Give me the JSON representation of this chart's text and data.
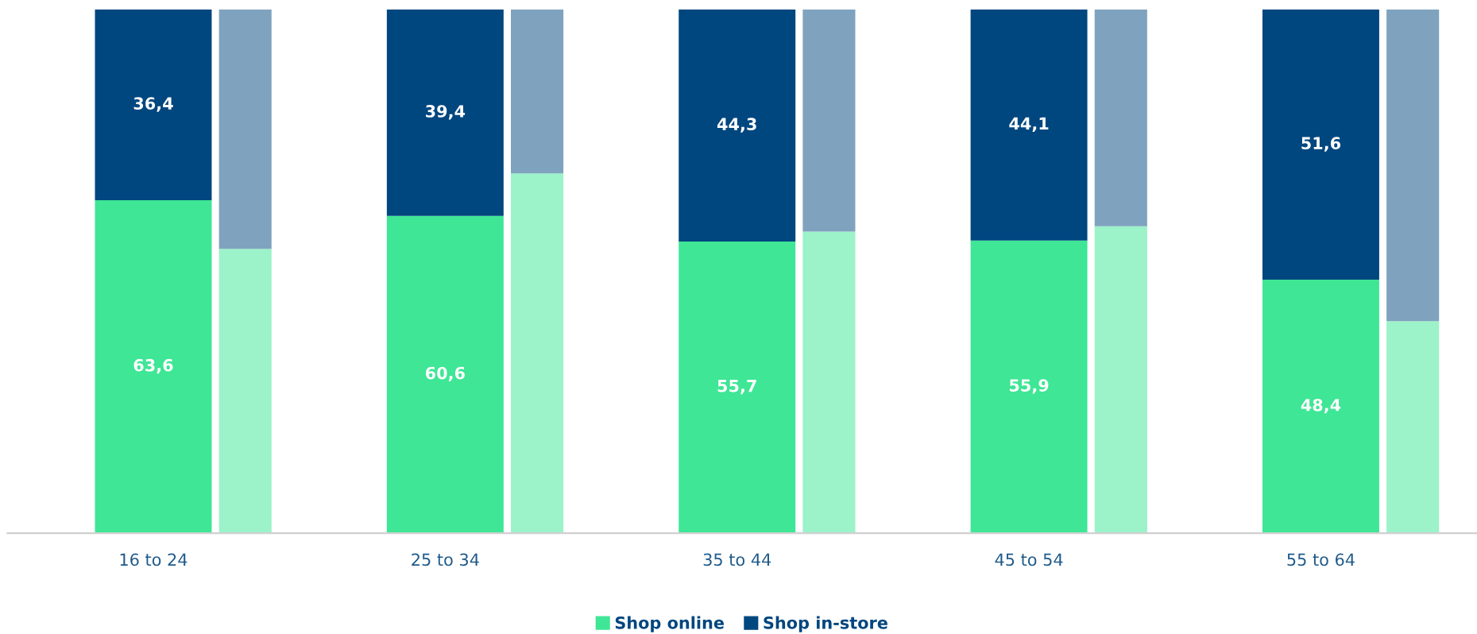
{
  "chart_data": {
    "type": "bar",
    "stacked": true,
    "categories": [
      "16 to 24",
      null,
      "25 to 34",
      null,
      "35 to 44",
      null,
      "45 to 54",
      null,
      "55 to 64",
      null
    ],
    "ylim": [
      0,
      100
    ],
    "tick_labels": "x",
    "grid": false,
    "legend": "bottom",
    "series": [
      {
        "name": "Shop online",
        "color": "#3ee695",
        "values": [
          63.6,
          null,
          60.6,
          null,
          55.7,
          null,
          55.9,
          null,
          48.4,
          null
        ],
        "value_labels": [
          "63,6",
          null,
          "60,6",
          null,
          "55,7",
          null,
          "55,9",
          null,
          "48,4",
          null
        ]
      },
      {
        "name": "Shop in-store",
        "color": "#00467f",
        "values": [
          36.4,
          null,
          39.4,
          null,
          44.3,
          null,
          44.1,
          null,
          51.6,
          null
        ],
        "value_labels": [
          "36,4",
          null,
          "39,4",
          null,
          "44,3",
          null,
          "44,1",
          null,
          "51,6",
          null
        ]
      },
      {
        "color": "#9cf2c9",
        "values": [
          null,
          54.3,
          null,
          68.7,
          null,
          57.6,
          null,
          58.6,
          null,
          40.5
        ]
      },
      {
        "color": "#7fa3bf",
        "values": [
          null,
          45.7,
          null,
          31.3,
          null,
          42.4,
          null,
          41.4,
          null,
          59.5
        ]
      }
    ]
  }
}
